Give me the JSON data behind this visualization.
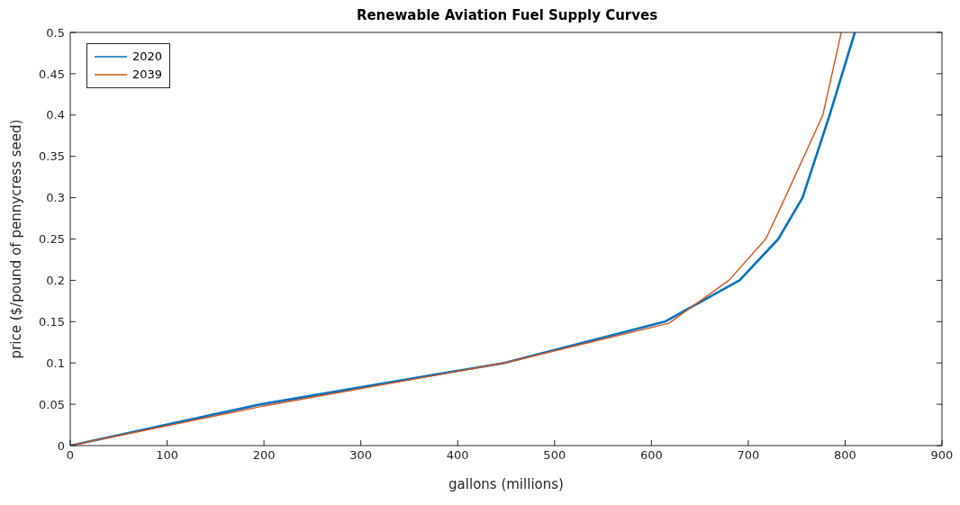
{
  "chart_data": {
    "type": "line",
    "title": "Renewable Aviation Fuel Supply Curves",
    "xlabel": "gallons (millions)",
    "ylabel": "price ($/pound of pennycress seed)",
    "series": [
      {
        "name": "2020",
        "color": "#0072bd",
        "x": [
          0,
          197,
          448,
          614,
          691,
          731,
          756,
          784,
          810
        ],
        "values": [
          0,
          0.05,
          0.1,
          0.15,
          0.2,
          0.25,
          0.3,
          0.4,
          0.5
        ]
      },
      {
        "name": "2039",
        "color": "#d95319",
        "x": [
          0,
          200,
          448,
          618,
          680,
          718,
          738,
          777,
          796
        ],
        "values": [
          0,
          0.048,
          0.1,
          0.148,
          0.2,
          0.25,
          0.3,
          0.4,
          0.5
        ]
      }
    ],
    "xlim": [
      0,
      900
    ],
    "xticks": [
      0,
      100,
      200,
      300,
      400,
      500,
      600,
      700,
      800,
      900
    ],
    "ylim": [
      0,
      0.5
    ],
    "yticks": [
      0,
      0.05,
      0.1,
      0.15,
      0.2,
      0.25,
      0.3,
      0.35,
      0.4,
      0.45,
      0.5
    ],
    "grid": false,
    "legend": "top left",
    "marker": "none",
    "line_style": "solid"
  }
}
